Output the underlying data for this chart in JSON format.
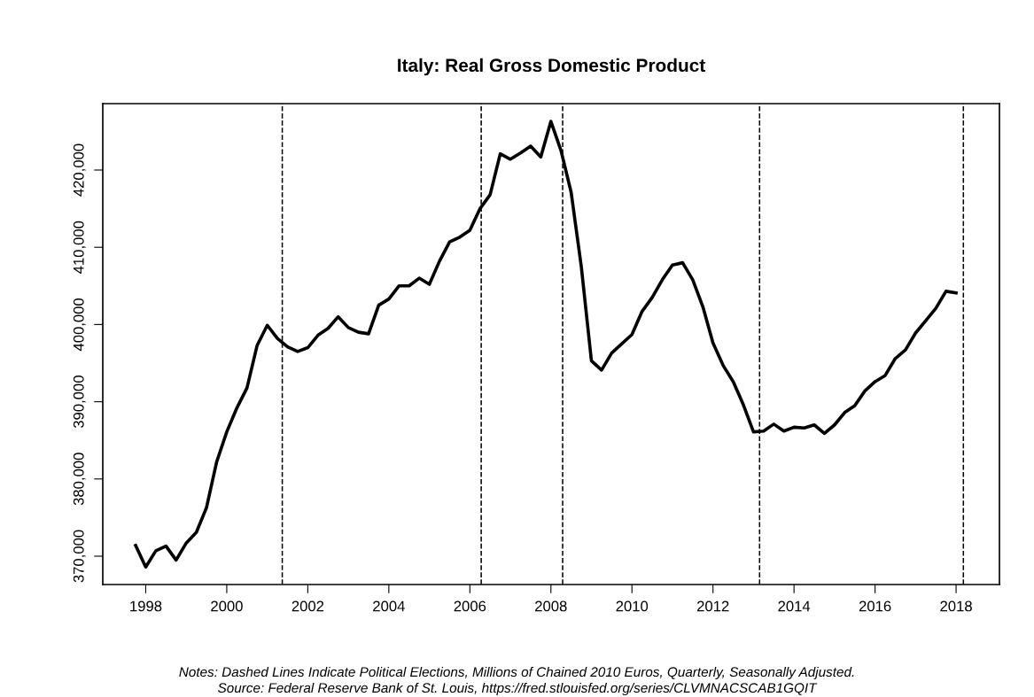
{
  "chart_data": {
    "type": "line",
    "title": "Italy: Real Gross Domestic Product",
    "x": [
      1997.75,
      1998.0,
      1998.25,
      1998.5,
      1998.75,
      1999.0,
      1999.25,
      1999.5,
      1999.75,
      2000.0,
      2000.25,
      2000.5,
      2000.75,
      2001.0,
      2001.25,
      2001.5,
      2001.75,
      2002.0,
      2002.25,
      2002.5,
      2002.75,
      2003.0,
      2003.25,
      2003.5,
      2003.75,
      2004.0,
      2004.25,
      2004.5,
      2004.75,
      2005.0,
      2005.25,
      2005.5,
      2005.75,
      2006.0,
      2006.25,
      2006.5,
      2006.75,
      2007.0,
      2007.25,
      2007.5,
      2007.75,
      2008.0,
      2008.25,
      2008.5,
      2008.75,
      2009.0,
      2009.25,
      2009.5,
      2009.75,
      2010.0,
      2010.25,
      2010.5,
      2010.75,
      2011.0,
      2011.25,
      2011.5,
      2011.75,
      2012.0,
      2012.25,
      2012.5,
      2012.75,
      2013.0,
      2013.25,
      2013.5,
      2013.75,
      2014.0,
      2014.25,
      2014.5,
      2014.75,
      2015.0,
      2015.25,
      2015.5,
      2015.75,
      2016.0,
      2016.25,
      2016.5,
      2016.75,
      2017.0,
      2017.25,
      2017.5,
      2017.75,
      2018.0
    ],
    "series": [
      {
        "color": "#000000",
        "values": [
          371400,
          368600,
          370700,
          371300,
          369500,
          371700,
          373100,
          376300,
          382200,
          386100,
          389200,
          391800,
          397300,
          399900,
          398200,
          397100,
          396500,
          397000,
          398600,
          399500,
          401000,
          399600,
          399000,
          398800,
          402500,
          403300,
          405000,
          405000,
          406000,
          405200,
          408200,
          410700,
          411300,
          412200,
          415000,
          416800,
          422100,
          421400,
          422200,
          423100,
          421700,
          426300,
          422500,
          417100,
          407500,
          395300,
          394100,
          396300,
          397500,
          398700,
          401700,
          403500,
          405800,
          407700,
          408000,
          405800,
          402300,
          397600,
          394700,
          392600,
          389600,
          386100,
          386200,
          387100,
          386200,
          386700,
          386600,
          387000,
          385900,
          387000,
          388600,
          389500,
          391400,
          392600,
          393400,
          395600,
          396700,
          398900,
          400500,
          402100,
          404300,
          404100
        ]
      }
    ],
    "xlim": [
      1996.94,
      2019.07
    ],
    "ylim": [
      366330,
      428600
    ],
    "xticks": [
      1998,
      2000,
      2002,
      2004,
      2006,
      2008,
      2010,
      2012,
      2014,
      2016,
      2018
    ],
    "yticks": [
      {
        "value": 370000,
        "label": "370,000"
      },
      {
        "value": 380000,
        "label": "380,000"
      },
      {
        "value": 390000,
        "label": "390,000"
      },
      {
        "value": 400000,
        "label": "400,000"
      },
      {
        "value": 410000,
        "label": "410,000"
      },
      {
        "value": 420000,
        "label": "420,000"
      }
    ],
    "ref_lines": [
      {
        "axis": "x",
        "value": 2001.37,
        "line_style": "dashed",
        "color": "#000000"
      },
      {
        "axis": "x",
        "value": 2006.28,
        "line_style": "dashed",
        "color": "#000000"
      },
      {
        "axis": "x",
        "value": 2008.29,
        "line_style": "dashed",
        "color": "#000000"
      },
      {
        "axis": "x",
        "value": 2013.15,
        "line_style": "dashed",
        "color": "#000000"
      },
      {
        "axis": "x",
        "value": 2018.18,
        "line_style": "dashed",
        "color": "#000000"
      }
    ],
    "annotations": [
      "Notes: Dashed Lines Indicate Political Elections, Millions of Chained 2010 Euros, Quarterly, Seasonally Adjusted.",
      "Source: Federal Reserve Bank of St. Louis, https://fred.stlouisfed.org/series/CLVMNACSCAB1GQIT"
    ],
    "grid": false,
    "marker": "none",
    "line_style": "solid",
    "legend": false
  }
}
